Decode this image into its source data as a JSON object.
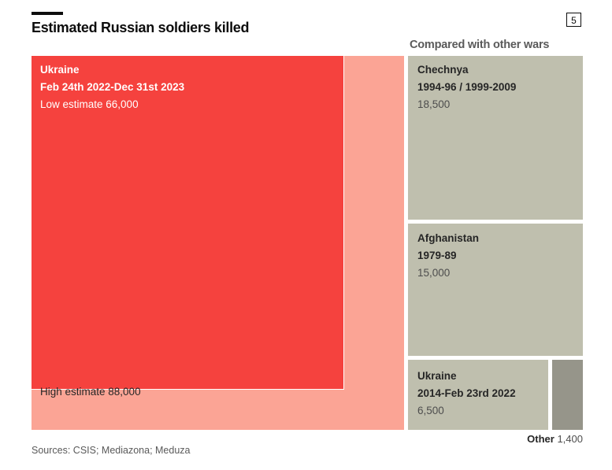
{
  "header": {
    "title": "Estimated Russian soldiers killed",
    "chart_number": "5"
  },
  "compare_label": "Compared with other wars",
  "source": "Sources: CSIS; Mediazona; Meduza",
  "colors": {
    "ukraine_low": "#f5423e",
    "ukraine_high": "#fba495",
    "other_wars": "#bfbfae",
    "other_small": "#96958a"
  },
  "chart_data": {
    "type": "treemap",
    "title": "Estimated Russian soldiers killed",
    "subtitle": "Compared with other wars",
    "units": "soldiers killed",
    "items": [
      {
        "id": "ukraine_high",
        "name": "Ukraine",
        "period": "Feb 24th 2022-Dec 31st 2023",
        "label": "High estimate",
        "value": 88000,
        "value_text": "88,000",
        "group": "main"
      },
      {
        "id": "ukraine_low",
        "name": "Ukraine",
        "period": "Feb 24th 2022-Dec 31st 2023",
        "label": "Low estimate",
        "value": 66000,
        "value_text": "66,000",
        "group": "main",
        "nested_in": "ukraine_high"
      },
      {
        "id": "chechnya",
        "name": "Chechnya",
        "period": "1994-96 / 1999-2009",
        "value": 18500,
        "value_text": "18,500",
        "group": "other"
      },
      {
        "id": "afghanistan",
        "name": "Afghanistan",
        "period": "1979-89",
        "value": 15000,
        "value_text": "15,000",
        "group": "other"
      },
      {
        "id": "ukraine_2014",
        "name": "Ukraine",
        "period": "2014-Feb 23rd 2022",
        "value": 6500,
        "value_text": "6,500",
        "group": "other"
      },
      {
        "id": "other",
        "name": "Other",
        "period": "",
        "value": 1400,
        "value_text": "1,400",
        "group": "other"
      }
    ]
  },
  "labels": {
    "ukraine_main": {
      "l1": "Ukraine",
      "l2": "Feb 24th 2022-Dec 31st 2023",
      "l3": "Low estimate 66,000"
    },
    "high": "High estimate 88,000",
    "chechnya": {
      "l1": "Chechnya",
      "l2": "1994-96 / 1999-2009",
      "l3": "18,500"
    },
    "afghanistan": {
      "l1": "Afghanistan",
      "l2": "1979-89",
      "l3": "15,000"
    },
    "ukraine_2014": {
      "l1": "Ukraine",
      "l2": "2014-Feb 23rd 2022",
      "l3": "6,500"
    },
    "other": {
      "name": "Other",
      "value": "1,400"
    }
  }
}
